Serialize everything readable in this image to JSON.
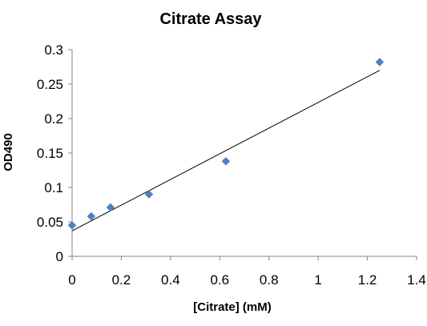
{
  "chart_data": {
    "type": "scatter",
    "title": "Citrate Assay",
    "xlabel": "[Citrate] (mM)",
    "ylabel": "OD490",
    "xlim": [
      0,
      1.4
    ],
    "ylim": [
      0,
      0.3
    ],
    "x_ticks": [
      "0",
      "0.2",
      "0.4",
      "0.6",
      "0.8",
      "1",
      "1.2",
      "1.4"
    ],
    "y_ticks": [
      "0",
      "0.05",
      "0.1",
      "0.15",
      "0.2",
      "0.25",
      "0.3"
    ],
    "grid": false,
    "legend": "none",
    "series": [
      {
        "marker": "diamond",
        "color": "#4F81BD",
        "x": [
          0,
          0.078,
          0.156,
          0.3125,
          0.625,
          1.25
        ],
        "y": [
          0.045,
          0.058,
          0.071,
          0.09,
          0.138,
          0.282
        ]
      }
    ],
    "trendline": {
      "type": "linear",
      "color": "#000000",
      "x": [
        0,
        1.25
      ],
      "y": [
        0.037,
        0.27
      ]
    }
  }
}
